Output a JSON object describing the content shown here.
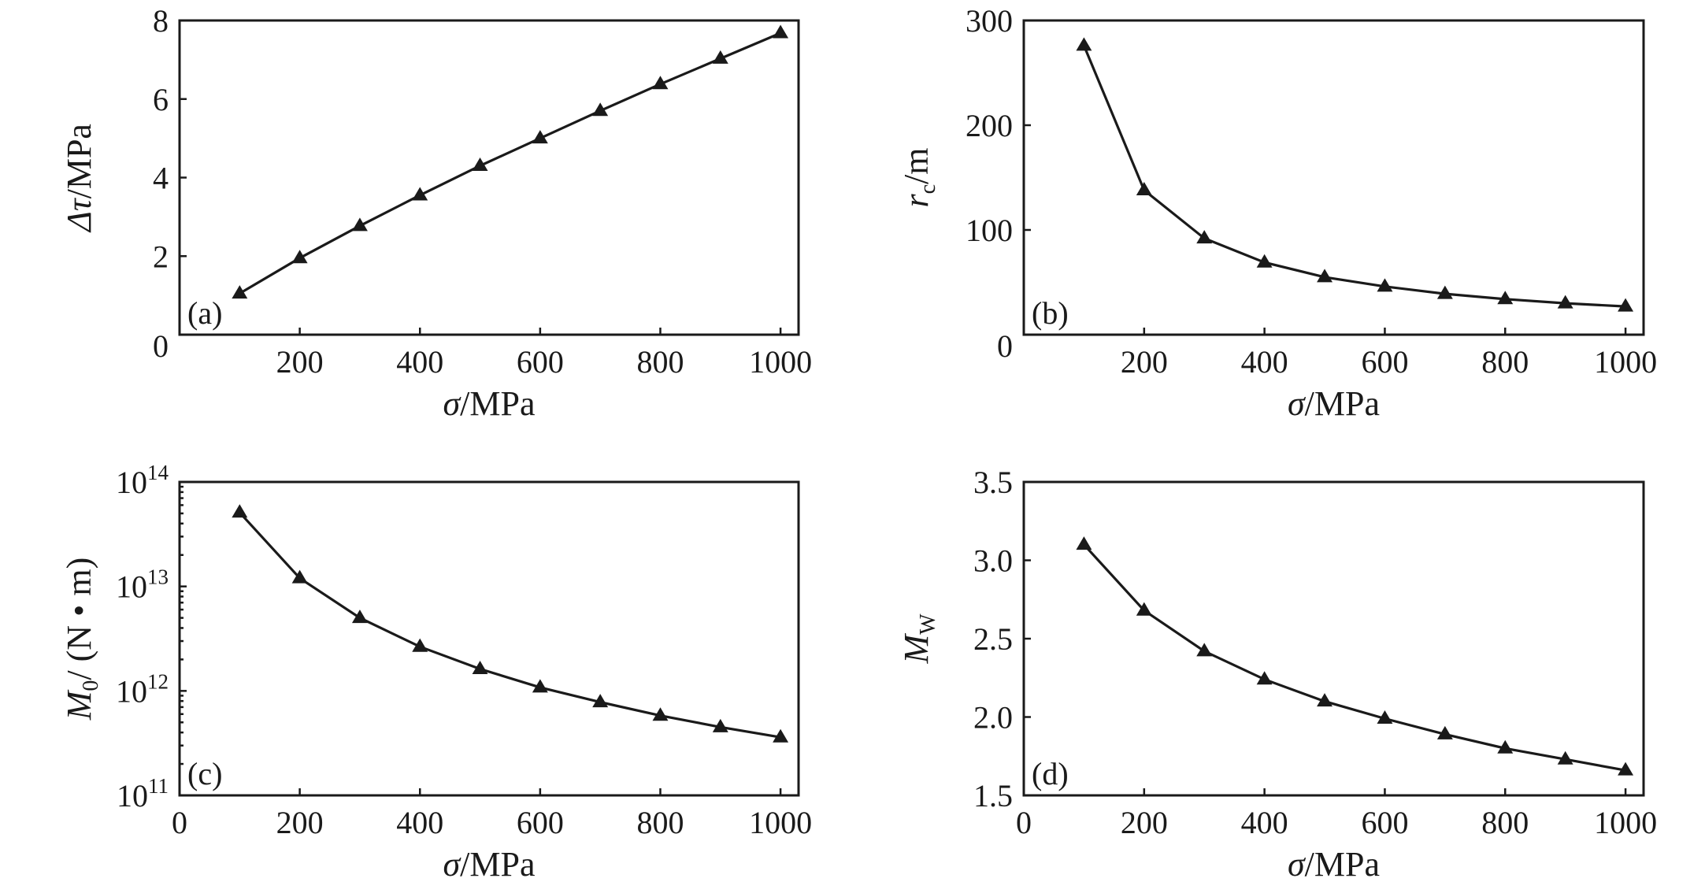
{
  "colors": {
    "ink": "#1a1a1a",
    "background": "#ffffff"
  },
  "chart_data": [
    {
      "panel": "(a)",
      "type": "line",
      "marker": "triangle",
      "x": [
        100,
        200,
        300,
        400,
        500,
        600,
        700,
        800,
        900,
        1000
      ],
      "series": [
        {
          "values": [
            1.05,
            1.95,
            2.77,
            3.55,
            4.3,
            5.0,
            5.7,
            6.38,
            7.03,
            7.68
          ]
        }
      ],
      "xlabel": {
        "symbol": "σ",
        "unit": "/MPa"
      },
      "ylabel": {
        "symbol": "Δτ",
        "unit": "/MPa"
      },
      "xlim": [
        0,
        1030
      ],
      "ylim": [
        0,
        8
      ],
      "xticks": [
        200,
        400,
        600,
        800,
        1000
      ],
      "yticks": [
        2,
        4,
        6,
        8
      ],
      "xtick_labels": [
        "200",
        "400",
        "600",
        "800",
        "1000"
      ],
      "ytick_labels": [
        "2",
        "4",
        "6",
        "8"
      ],
      "origin_label": "0",
      "scale": "linear",
      "grid": false
    },
    {
      "panel": "(b)",
      "type": "line",
      "marker": "triangle",
      "x": [
        100,
        200,
        300,
        400,
        500,
        600,
        700,
        800,
        900,
        1000
      ],
      "series": [
        {
          "values": [
            276,
            138,
            92,
            69,
            55,
            46,
            39,
            34,
            30,
            27
          ]
        }
      ],
      "xlabel": {
        "symbol": "σ",
        "unit": "/MPa"
      },
      "ylabel": {
        "symbol": "r",
        "subscript": "c",
        "unit": "/m"
      },
      "xlim": [
        0,
        1030
      ],
      "ylim": [
        0,
        300
      ],
      "xticks": [
        200,
        400,
        600,
        800,
        1000
      ],
      "yticks": [
        100,
        200,
        300
      ],
      "xtick_labels": [
        "200",
        "400",
        "600",
        "800",
        "1000"
      ],
      "ytick_labels": [
        "100",
        "200",
        "300"
      ],
      "origin_label": "0",
      "scale": "linear",
      "grid": false
    },
    {
      "panel": "(c)",
      "type": "line",
      "marker": "triangle",
      "x": [
        100,
        200,
        300,
        400,
        500,
        600,
        700,
        800,
        900,
        1000
      ],
      "series": [
        {
          "values": [
            51000000000000.0,
            12000000000000.0,
            5000000000000.0,
            2650000000000.0,
            1620000000000.0,
            1080000000000.0,
            780000000000.0,
            580000000000.0,
            450000000000.0,
            360000000000.0
          ]
        }
      ],
      "xlabel": {
        "symbol": "σ",
        "unit": "/MPa"
      },
      "ylabel": {
        "symbol": "M",
        "subscript": "0",
        "unit": "/ (N • m)"
      },
      "xlim": [
        0,
        1030
      ],
      "ylim": [
        100000000000.0,
        100000000000000.0
      ],
      "xticks": [
        0,
        200,
        400,
        600,
        800,
        1000
      ],
      "xtick_labels": [
        "0",
        "200",
        "400",
        "600",
        "800",
        "1000"
      ],
      "ytick_labels": [
        {
          "base": "10",
          "exp": "11"
        },
        {
          "base": "10",
          "exp": "12"
        },
        {
          "base": "10",
          "exp": "13"
        },
        {
          "base": "10",
          "exp": "14"
        }
      ],
      "scale": "log",
      "grid": false
    },
    {
      "panel": "(d)",
      "type": "line",
      "marker": "triangle",
      "x": [
        100,
        200,
        300,
        400,
        500,
        600,
        700,
        800,
        900,
        1000
      ],
      "series": [
        {
          "values": [
            3.1,
            2.68,
            2.42,
            2.24,
            2.1,
            1.99,
            1.89,
            1.8,
            1.73,
            1.66
          ]
        }
      ],
      "xlabel": {
        "symbol": "σ",
        "unit": "/MPa"
      },
      "ylabel": {
        "symbol": "M",
        "subscript": "W",
        "unit": ""
      },
      "xlim": [
        0,
        1030
      ],
      "ylim": [
        1.5,
        3.5
      ],
      "xticks": [
        0,
        200,
        400,
        600,
        800,
        1000
      ],
      "yticks": [
        1.5,
        2.0,
        2.5,
        3.0,
        3.5
      ],
      "xtick_labels": [
        "0",
        "200",
        "400",
        "600",
        "800",
        "1000"
      ],
      "ytick_labels": [
        "1.5",
        "2.0",
        "2.5",
        "3.0",
        "3.5"
      ],
      "scale": "linear",
      "grid": false
    }
  ]
}
